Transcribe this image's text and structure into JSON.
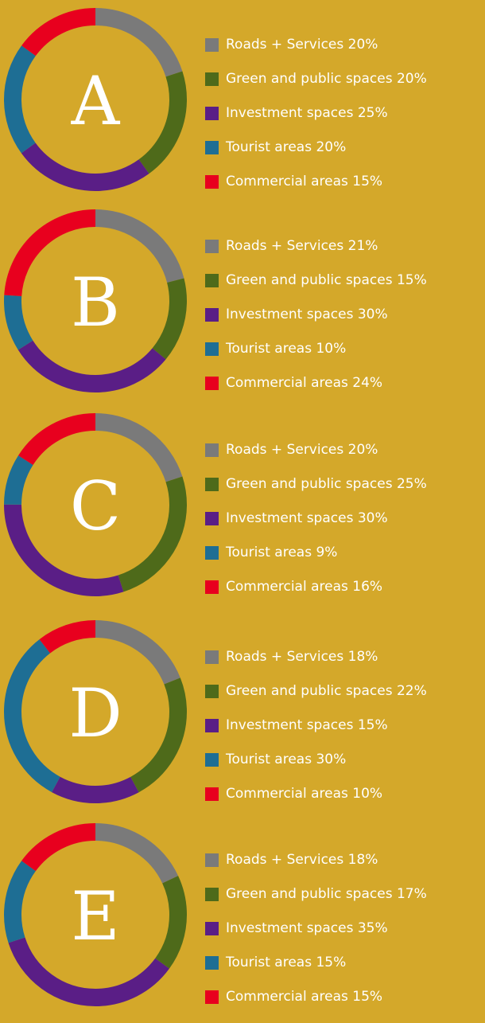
{
  "categories": [
    "Roads + Services",
    "Green and public spaces",
    "Investment spaces",
    "Tourist areas",
    "Commercial areas"
  ],
  "colors": {
    "Roads + Services": "#7A7A7A",
    "Green and public spaces": "#4E6A1A",
    "Investment spaces": "#5A1E86",
    "Tourist areas": "#1E6E94",
    "Commercial areas": "#E8001E"
  },
  "chart_data": [
    {
      "type": "pie",
      "title": "A",
      "categories": [
        "Roads + Services",
        "Green and public spaces",
        "Investment spaces",
        "Tourist areas",
        "Commercial areas"
      ],
      "values": [
        20,
        20,
        25,
        20,
        15
      ],
      "legend": [
        "Roads + Services 20%",
        "Green and public spaces 20%",
        "Investment spaces 25%",
        "Tourist areas 20%",
        "Commercial areas 15%"
      ]
    },
    {
      "type": "pie",
      "title": "B",
      "categories": [
        "Roads + Services",
        "Green and public spaces",
        "Investment spaces",
        "Tourist areas",
        "Commercial areas"
      ],
      "values": [
        21,
        15,
        30,
        10,
        24
      ],
      "legend": [
        "Roads + Services 21%",
        "Green and public spaces 15%",
        "Investment spaces 30%",
        "Tourist areas 10%",
        "Commercial areas 24%"
      ]
    },
    {
      "type": "pie",
      "title": "C",
      "categories": [
        "Roads + Services",
        "Green and public spaces",
        "Investment spaces",
        "Tourist areas",
        "Commercial areas"
      ],
      "values": [
        20,
        25,
        30,
        9,
        16
      ],
      "legend": [
        "Roads + Services 20%",
        "Green and public spaces 25%",
        "Investment spaces 30%",
        "Tourist areas 9%",
        "Commercial areas 16%"
      ]
    },
    {
      "type": "pie",
      "title": "D",
      "categories": [
        "Roads + Services",
        "Green and public spaces",
        "Investment spaces",
        "Tourist areas",
        "Commercial areas"
      ],
      "values": [
        18,
        22,
        15,
        30,
        10
      ],
      "legend": [
        "Roads + Services 18%",
        "Green and public spaces 22%",
        "Investment spaces 15%",
        "Tourist areas 30%",
        "Commercial areas 10%"
      ]
    },
    {
      "type": "pie",
      "title": "E",
      "categories": [
        "Roads + Services",
        "Green and public spaces",
        "Investment spaces",
        "Tourist areas",
        "Commercial areas"
      ],
      "values": [
        18,
        17,
        35,
        15,
        15
      ],
      "legend": [
        "Roads + Services 18%",
        "Green and public spaces 17%",
        "Investment spaces 35%",
        "Tourist areas 15%",
        "Commercial areas 15%"
      ]
    }
  ]
}
